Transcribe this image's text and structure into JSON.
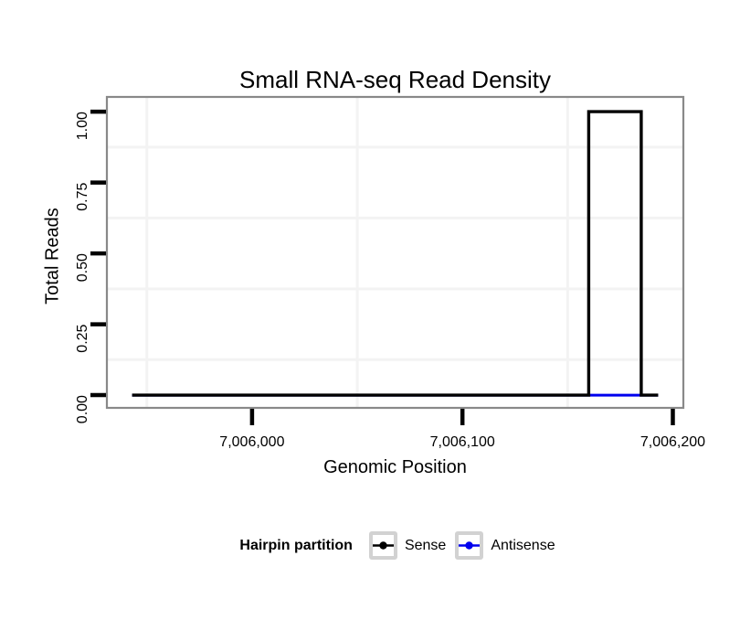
{
  "chart_data": {
    "type": "step-line",
    "title": "Small RNA-seq Read Density",
    "xlabel": "Genomic Position",
    "ylabel": "Total Reads",
    "xlim": [
      7005931,
      7006205
    ],
    "ylim": [
      -0.045,
      1.052
    ],
    "x_ticks": {
      "values": [
        7006000,
        7006100,
        7006200
      ],
      "labels": [
        "7,006,000",
        "7,006,100",
        "7,006,200"
      ]
    },
    "y_ticks": {
      "values": [
        0,
        0.25,
        0.5,
        0.75,
        1.0
      ],
      "labels": [
        "0.00",
        "0.25",
        "0.50",
        "0.75",
        "1.00"
      ]
    },
    "x_minor_grid": [
      7005950,
      7006050,
      7006150
    ],
    "y_minor_grid": [
      0.125,
      0.375,
      0.625,
      0.875
    ],
    "grid": "minor-only",
    "series": [
      {
        "name": "Antisense",
        "color": "#0000ee",
        "points": [
          [
            7005943,
            0
          ],
          [
            7006193,
            0
          ]
        ]
      },
      {
        "name": "Sense",
        "color": "#000000",
        "points": [
          [
            7005943,
            0
          ],
          [
            7006160,
            0
          ],
          [
            7006160,
            1
          ],
          [
            7006185,
            1
          ],
          [
            7006185,
            0
          ],
          [
            7006193,
            0
          ]
        ]
      }
    ],
    "legend": {
      "title": "Hairpin partition",
      "position": "bottom",
      "entries": [
        {
          "label": "Sense",
          "color": "#000000"
        },
        {
          "label": "Antisense",
          "color": "#0000ee"
        }
      ]
    },
    "colors": {
      "background": "#ffffff",
      "panel_background": "#ffffff",
      "panel_border": "#898989",
      "minor_grid": "#f3f3f3",
      "tick": "#000000",
      "tick_label": "#000000",
      "legend_key_border": "#d2d2d2"
    }
  }
}
